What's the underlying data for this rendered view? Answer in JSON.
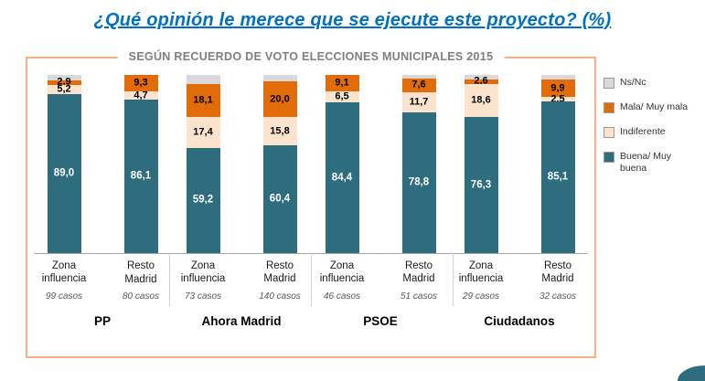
{
  "title": "¿Qué opinión le merece que se ejecute este proyecto? (%)",
  "subtitle": "SEGÚN RECUERDO DE VOTO ELECCIONES MUNICIPALES 2015",
  "colors": {
    "title": "#0070c0",
    "subtitle": "#7f7f7f",
    "box_border": "#f5b183",
    "buena": "#2e6d7d",
    "indiferente": "#fbe3cd",
    "mala": "#e36c0a",
    "nsnc": "#d9d9d9",
    "axis": "#a6a6a6"
  },
  "legend": [
    {
      "key": "nsnc",
      "label": "Ns/Nc"
    },
    {
      "key": "mala",
      "label": "Mala/ Muy mala"
    },
    {
      "key": "indiferente",
      "label": "Indiferente"
    },
    {
      "key": "buena",
      "label": "Buena/ Muy buena"
    }
  ],
  "chart_data": {
    "type": "bar",
    "stacked": true,
    "unit": "%",
    "ylim": [
      0,
      100
    ],
    "segments_bottom_to_top": [
      "buena",
      "indiferente",
      "mala",
      "nsnc"
    ],
    "groups": [
      {
        "name": "PP",
        "bars": [
          {
            "category": "Zona influencia",
            "casos": "99 casos",
            "values": {
              "buena": 89.0,
              "indiferente": 5.2,
              "mala": 2.9,
              "nsnc": 2.9
            },
            "labels": {
              "buena": "89,0",
              "indiferente": "5,2",
              "mala": "2,9"
            }
          },
          {
            "category": "Resto Madrid",
            "casos": "80 casos",
            "values": {
              "buena": 86.1,
              "indiferente": 4.7,
              "mala": 9.3,
              "nsnc": 0
            },
            "labels": {
              "buena": "86,1",
              "indiferente": "4,7",
              "mala": "9,3"
            }
          }
        ]
      },
      {
        "name": "Ahora Madrid",
        "bars": [
          {
            "category": "Zona influencia",
            "casos": "73 casos",
            "values": {
              "buena": 59.2,
              "indiferente": 17.4,
              "mala": 18.1,
              "nsnc": 5.3
            },
            "labels": {
              "buena": "59,2",
              "indiferente": "17,4",
              "mala": "18,1"
            }
          },
          {
            "category": "Resto Madrid",
            "casos": "140 casos",
            "values": {
              "buena": 60.4,
              "indiferente": 15.8,
              "mala": 20.0,
              "nsnc": 3.8
            },
            "labels": {
              "buena": "60,4",
              "indiferente": "15,8",
              "mala": "20,0"
            }
          }
        ]
      },
      {
        "name": "PSOE",
        "bars": [
          {
            "category": "Zona influencia",
            "casos": "46 casos",
            "values": {
              "buena": 84.4,
              "indiferente": 6.5,
              "mala": 9.1,
              "nsnc": 0
            },
            "labels": {
              "buena": "84,4",
              "indiferente": "6,5",
              "mala": "9,1"
            }
          },
          {
            "category": "Resto Madrid",
            "casos": "51 casos",
            "values": {
              "buena": 78.8,
              "indiferente": 11.7,
              "mala": 7.6,
              "nsnc": 1.9
            },
            "labels": {
              "buena": "78,8",
              "indiferente": "11,7",
              "mala": "7,6"
            }
          }
        ]
      },
      {
        "name": "Ciudadanos",
        "bars": [
          {
            "category": "Zona influencia",
            "casos": "29 casos",
            "values": {
              "buena": 76.3,
              "indiferente": 18.6,
              "mala": 2.6,
              "nsnc": 2.5
            },
            "labels": {
              "buena": "76,3",
              "indiferente": "18,6",
              "mala": "2,6"
            }
          },
          {
            "category": "Resto Madrid",
            "casos": "32 casos",
            "values": {
              "buena": 85.1,
              "indiferente": 2.5,
              "mala": 9.9,
              "nsnc": 2.5
            },
            "labels": {
              "buena": "85,1",
              "indiferente": "2,5",
              "mala": "9,9"
            }
          }
        ]
      }
    ]
  }
}
